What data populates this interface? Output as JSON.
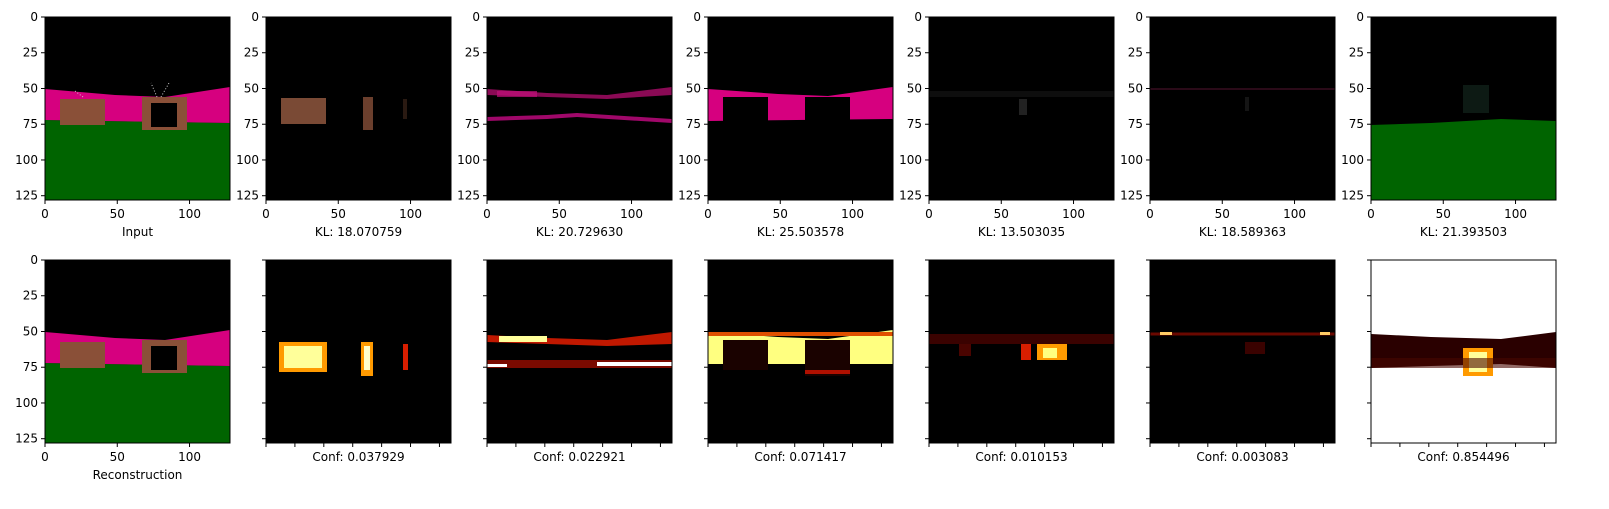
{
  "figure": {
    "x_ticks": [
      "0",
      "50",
      "100"
    ],
    "y_ticks": [
      "0",
      "25",
      "50",
      "75",
      "100",
      "125"
    ],
    "colors": {
      "background": "#000000",
      "wall": "#d6007f",
      "floor": "#006400",
      "object": "#7a4a35",
      "heat_low": "#3a0000",
      "heat_mid": "#d81e00",
      "heat_high": "#ffff8a",
      "heat_full": "#ffffff"
    },
    "top_row": [
      {
        "caption": "Input",
        "kind": "input"
      },
      {
        "caption": "KL: 18.070759",
        "kind": "slot-objects"
      },
      {
        "caption": "KL: 20.729630",
        "kind": "slot-wall-edge"
      },
      {
        "caption": "KL: 25.503578",
        "kind": "slot-wall"
      },
      {
        "caption": "KL: 13.503035",
        "kind": "slot-dim"
      },
      {
        "caption": "KL: 18.589363",
        "kind": "slot-faint"
      },
      {
        "caption": "KL: 21.393503",
        "kind": "slot-floor"
      }
    ],
    "bottom_row": [
      {
        "caption": "Reconstruction",
        "kind": "recon"
      },
      {
        "caption": "Conf: 0.037929",
        "kind": "mask-objects"
      },
      {
        "caption": "Conf: 0.022921",
        "kind": "mask-wall-edge"
      },
      {
        "caption": "Conf: 0.071417",
        "kind": "mask-wall"
      },
      {
        "caption": "Conf: 0.010153",
        "kind": "mask-dim"
      },
      {
        "caption": "Conf: 0.003083",
        "kind": "mask-faint"
      },
      {
        "caption": "Conf: 0.854496",
        "kind": "mask-floor"
      }
    ]
  }
}
